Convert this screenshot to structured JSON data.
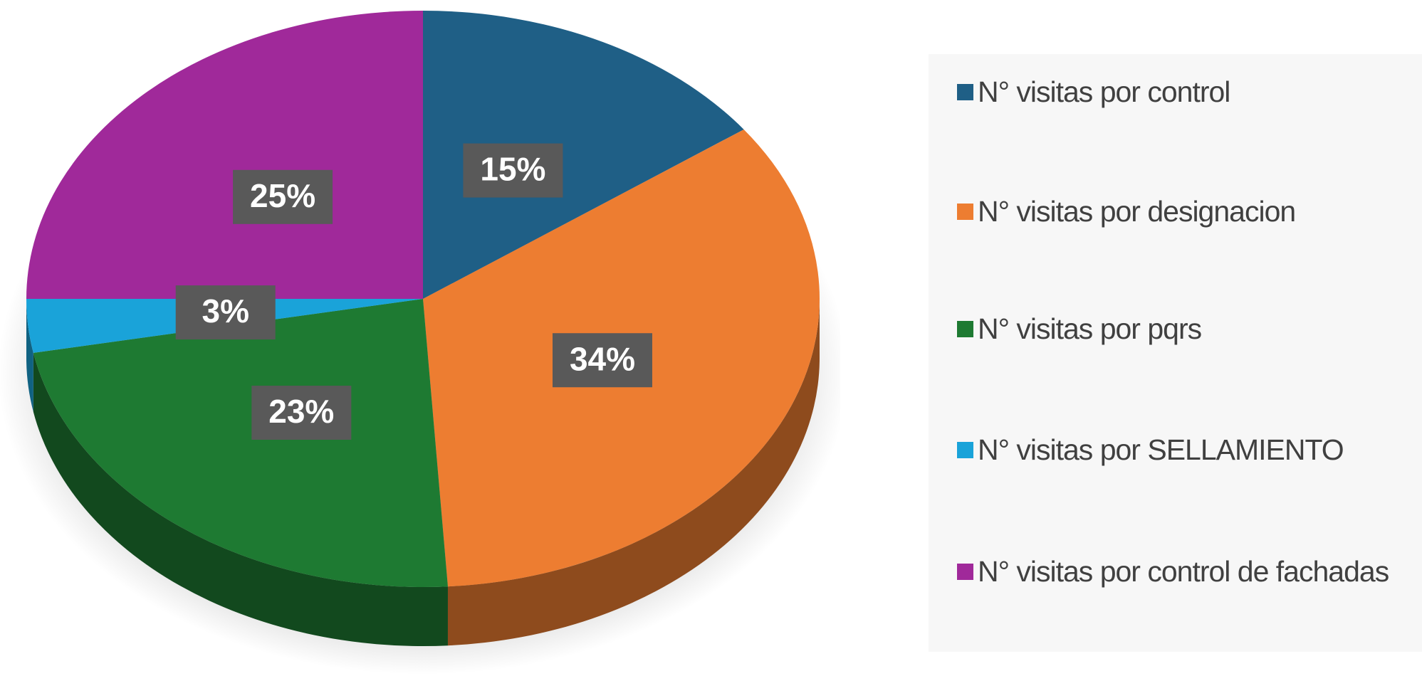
{
  "chart_data": {
    "type": "pie3d",
    "categories": [
      "N° visitas por control",
      "N° visitas por designacion",
      "N° visitas por pqrs",
      "N° visitas por SELLAMIENTO",
      "N° visitas por control de fachadas"
    ],
    "values": [
      15,
      34,
      23,
      3,
      25
    ],
    "value_labels": [
      "15%",
      "34%",
      "23%",
      "3%",
      "25%"
    ],
    "colors": [
      "#1f5f86",
      "#ed7d31",
      "#1e7a32",
      "#1aa3d9",
      "#a0299a"
    ],
    "legend": "right"
  }
}
